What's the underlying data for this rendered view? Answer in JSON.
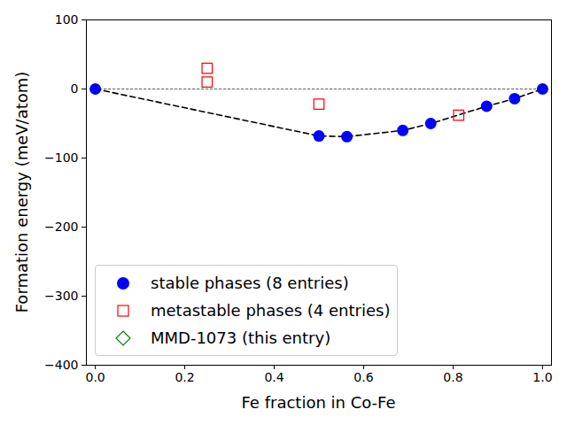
{
  "chart_data": {
    "type": "scatter",
    "x_label": "Fe fraction in Co-Fe",
    "y_label": "Formation energy (meV/atom)",
    "xlim": [
      -0.02,
      1.02
    ],
    "ylim": [
      -400,
      100
    ],
    "xticks": [
      {
        "value": 0,
        "label": "0.0"
      },
      {
        "value": 0.2,
        "label": "0.2"
      },
      {
        "value": 0.4,
        "label": "0.4"
      },
      {
        "value": 0.6,
        "label": "0.6"
      },
      {
        "value": 0.8,
        "label": "0.8"
      },
      {
        "value": 1,
        "label": "1.0"
      }
    ],
    "yticks": [
      {
        "value": -400,
        "label": "−400"
      },
      {
        "value": -300,
        "label": "−300"
      },
      {
        "value": -200,
        "label": "−200"
      },
      {
        "value": -100,
        "label": "−100"
      },
      0,
      100
    ],
    "grid": false,
    "legend": "lower left",
    "series": [
      {
        "type": "line",
        "line_style": "dotted",
        "color": "#808080",
        "x": [
          0,
          1
        ],
        "values": [
          0,
          0
        ]
      },
      {
        "type": "line",
        "line_style": "dashed",
        "color": "#000000",
        "x": [
          0,
          0.5,
          0.5625,
          0.6875,
          0.75,
          0.875,
          0.9375,
          1
        ],
        "values": [
          0,
          -68,
          -69,
          -60,
          -50,
          -25,
          -14,
          0
        ]
      },
      {
        "name": "stable phases (8 entries)",
        "type": "scatter",
        "marker": "circle",
        "color": "#0000ff",
        "x": [
          0,
          0.5,
          0.5625,
          0.6875,
          0.75,
          0.875,
          0.9375,
          1
        ],
        "values": [
          0,
          -68,
          -69,
          -60,
          -50,
          -25,
          -14,
          0
        ]
      },
      {
        "name": "metastable phases (4 entries)",
        "type": "scatter",
        "marker": "square",
        "color": "#ff0000",
        "x": [
          0.25,
          0.25,
          0.5,
          0.8125
        ],
        "values": [
          30,
          10,
          -22,
          -38
        ]
      },
      {
        "name": "MMD-1073 (this entry)",
        "type": "scatter",
        "marker": "diamond",
        "color": "#008000",
        "x": [],
        "values": []
      }
    ]
  }
}
